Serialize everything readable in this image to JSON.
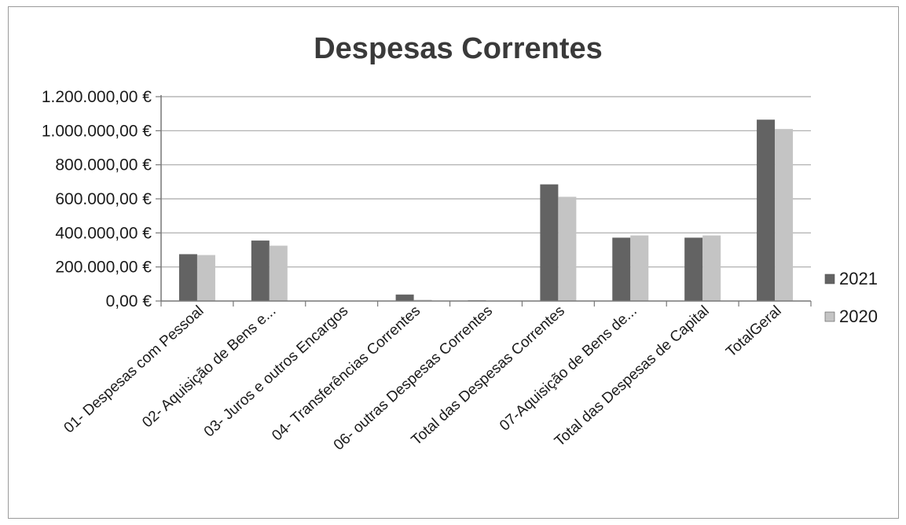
{
  "chart_data": {
    "type": "bar",
    "title": "Despesas Correntes",
    "xlabel": "",
    "ylabel": "",
    "ylim": [
      0,
      1200000
    ],
    "ytick_values": [
      0,
      200000,
      400000,
      600000,
      800000,
      1000000,
      1200000
    ],
    "ytick_labels": [
      "0,00 €",
      "200.000,00 €",
      "400.000,00 €",
      "600.000,00 €",
      "800.000,00 €",
      "1.000.000,00 €",
      "1.200.000,00 €"
    ],
    "categories": [
      "01- Despesas com Pessoal",
      "02- Aquisição de Bens e...",
      "03- Juros e outros Encargos",
      "04- Transferências Correntes",
      "06- outras Despesas Correntes",
      "Total das Despesas Correntes",
      "07-Aquisição de Bens de...",
      "Total das Despesas  de Capital",
      "TotalGeral"
    ],
    "series": [
      {
        "name": "2021",
        "color": "#636363",
        "values": [
          275000,
          355000,
          0,
          38000,
          4000,
          685000,
          372000,
          372000,
          1065000
        ]
      },
      {
        "name": "2020",
        "color": "#c4c4c4",
        "values": [
          270000,
          325000,
          0,
          7000,
          1000,
          612000,
          385000,
          385000,
          1010000
        ]
      }
    ],
    "grid": true,
    "legend_position": "right"
  },
  "colors": {
    "gridline": "#a8a8a8",
    "axis": "#777777",
    "frame": "#9a9a9a"
  }
}
